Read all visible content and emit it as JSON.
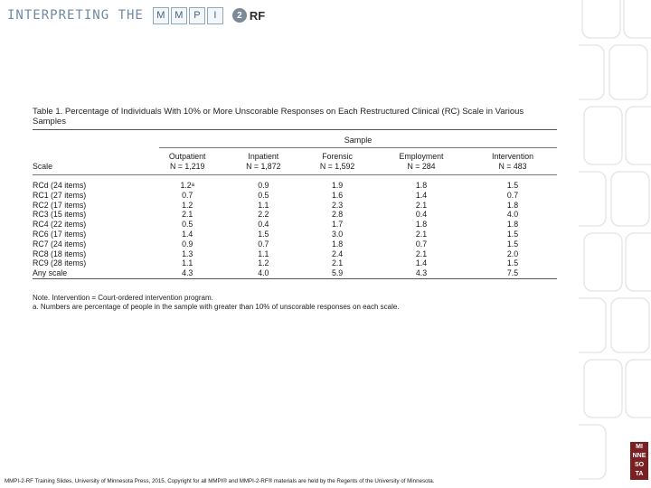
{
  "header": {
    "title": "INTERPRETING THE",
    "mmpi_letters": [
      "M",
      "M",
      "P",
      "I"
    ],
    "two": "2",
    "rf": "RF"
  },
  "table": {
    "title": "Table 1. Percentage of Individuals With 10% or More Unscorable Responses on Each Restructured Clinical (RC) Scale in Various Samples",
    "sample_label": "Sample",
    "scale_label": "Scale",
    "columns": [
      {
        "name": "Outpatient",
        "n": "N = 1,219"
      },
      {
        "name": "Inpatient",
        "n": "N = 1,872"
      },
      {
        "name": "Forensic",
        "n": "N = 1,592"
      },
      {
        "name": "Employment",
        "n": "N = 284"
      },
      {
        "name": "Intervention",
        "n": "N = 483"
      }
    ],
    "rows": [
      {
        "scale": "RCd (24 items)",
        "values": [
          "1.2ᵃ",
          "0.9",
          "1.9",
          "1.8",
          "1.5"
        ]
      },
      {
        "scale": "RC1 (27 items)",
        "values": [
          "0.7",
          "0.5",
          "1.6",
          "1.4",
          "0.7"
        ]
      },
      {
        "scale": "RC2 (17 items)",
        "values": [
          "1.2",
          "1.1",
          "2.3",
          "2.1",
          "1.8"
        ]
      },
      {
        "scale": "RC3 (15 items)",
        "values": [
          "2.1",
          "2.2",
          "2.8",
          "0.4",
          "4.0"
        ]
      },
      {
        "scale": "RC4 (22 items)",
        "values": [
          "0.5",
          "0.4",
          "1.7",
          "1.8",
          "1.8"
        ]
      },
      {
        "scale": "RC6 (17 items)",
        "values": [
          "1.4",
          "1.5",
          "3.0",
          "2.1",
          "1.5"
        ]
      },
      {
        "scale": "RC7 (24 items)",
        "values": [
          "0.9",
          "0.7",
          "1.8",
          "0.7",
          "1.5"
        ]
      },
      {
        "scale": "RC8 (18 items)",
        "values": [
          "1.3",
          "1.1",
          "2.4",
          "2.1",
          "2.0"
        ]
      },
      {
        "scale": "RC9 (28 items)",
        "values": [
          "1.1",
          "1.2",
          "2.1",
          "1.4",
          "1.5"
        ]
      },
      {
        "scale": "Any scale",
        "values": [
          "4.3",
          "4.0",
          "5.9",
          "4.3",
          "7.5"
        ]
      }
    ],
    "note1": "Note. Intervention = Court-ordered intervention program.",
    "note2": "a. Numbers are percentage of people in the sample with greater than 10% of unscorable responses on each scale."
  },
  "footer": {
    "text": "MMPI-2-RF Training Slides, University of Minnesota Press, 2015. Copyright for all MMPI® and MMPI-2-RF® materials are held by the Regents of the University of Minnesota."
  },
  "logo": {
    "lines": [
      "MI",
      "NNE",
      "SO",
      "TA"
    ]
  }
}
